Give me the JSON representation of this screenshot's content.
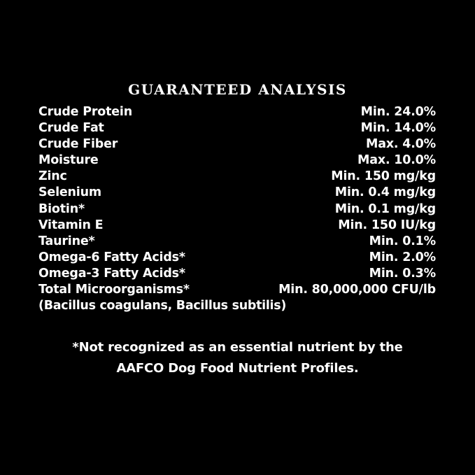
{
  "title": "GUARANTEED ANALYSIS",
  "rows": [
    {
      "name": "Crude Protein",
      "value": "Min. 24.0%"
    },
    {
      "name": "Crude Fat",
      "value": "Min. 14.0%"
    },
    {
      "name": "Crude Fiber",
      "value": "Max. 4.0%"
    },
    {
      "name": "Moisture",
      "value": "Max. 10.0%"
    },
    {
      "name": "Zinc",
      "value": "Min. 150 mg/kg"
    },
    {
      "name": "Selenium",
      "value": "Min. 0.4 mg/kg"
    },
    {
      "name": "Biotin*",
      "value": "Min. 0.1 mg/kg"
    },
    {
      "name": "Vitamin E",
      "value": "Min. 150 IU/kg"
    },
    {
      "name": "Taurine*",
      "value": "Min. 0.1%"
    },
    {
      "name": "Omega-6 Fatty Acids*",
      "value": "Min. 2.0%"
    },
    {
      "name": "Omega-3 Fatty Acids*",
      "value": "Min. 0.3%"
    },
    {
      "name": "Total Microorganisms*",
      "value": "Min. 80,000,000 CFU/lb"
    }
  ],
  "microorganisms_note": "(Bacillus coagulans, Bacillus subtilis)",
  "footnote": {
    "line1": "*Not recognized as an essential nutrient by the",
    "line2": "AAFCO Dog Food Nutrient Profiles."
  }
}
